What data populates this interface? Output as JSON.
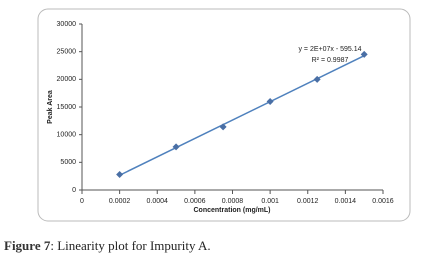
{
  "chart_data": {
    "type": "scatter",
    "x_label": "Concentration (mg/mL)",
    "y_label": "Peak Area",
    "annotations": [
      "y = 2E+07x - 595.14",
      "R² = 0.9987"
    ],
    "series": [
      {
        "color": "#4a6fa5",
        "x": [
          0.0002,
          0.0005,
          0.00075,
          0.001,
          0.00125,
          0.0015
        ],
        "values": [
          2800,
          7800,
          11400,
          16000,
          20000,
          24500
        ]
      }
    ],
    "trendline_color": "#4f81bd",
    "xlim": [
      0,
      0.0016
    ],
    "xticks": [
      0,
      0.0002,
      0.0004,
      0.0006,
      0.0008,
      0.001,
      0.0012,
      0.0014,
      0.0016
    ],
    "ylim": [
      0,
      30000
    ],
    "yticks": [
      0,
      5000,
      10000,
      15000,
      20000,
      25000,
      30000
    ]
  },
  "caption": {
    "label": "Figure 7",
    "text": ": Linearity plot for Impurity A."
  }
}
